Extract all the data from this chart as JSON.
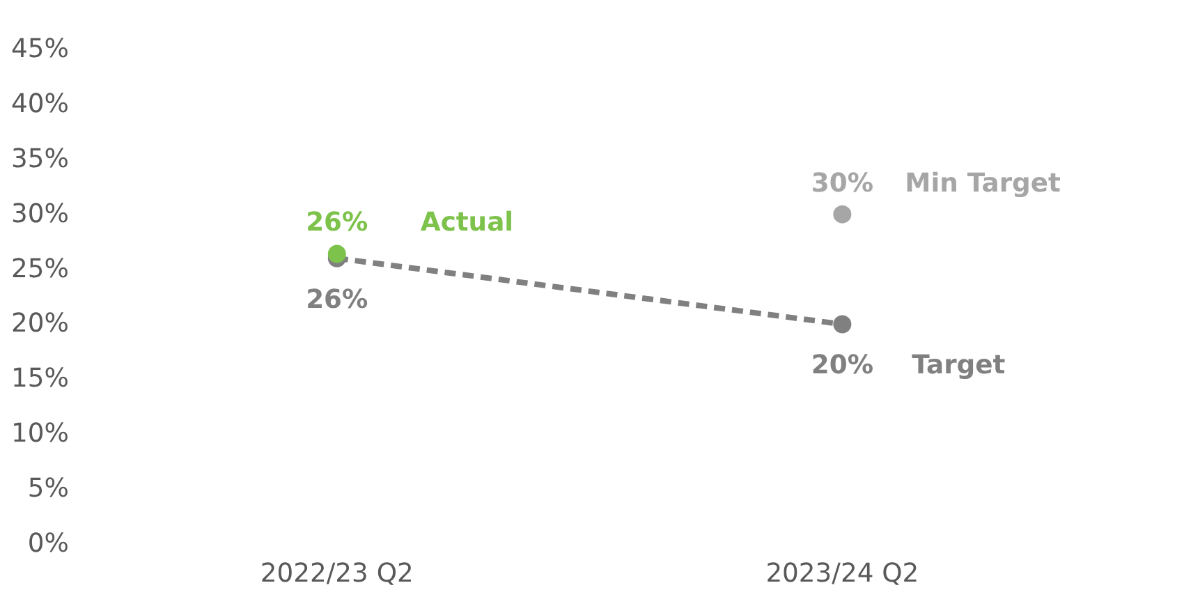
{
  "chart_data": {
    "type": "line",
    "categories": [
      "2022/23 Q2",
      "2023/24 Q2"
    ],
    "series": [
      {
        "name": "Target",
        "line_style": "dashed",
        "color": "#808080",
        "values": [
          26,
          20
        ],
        "value_labels": [
          "26%",
          "20%"
        ]
      },
      {
        "name": "Min Target",
        "type": "scatter",
        "color": "#a6a6a6",
        "values": [
          null,
          30
        ],
        "value_labels": [
          null,
          "30%"
        ]
      },
      {
        "name": "Actual",
        "type": "scatter",
        "color": "#7dc24b",
        "values": [
          26.4,
          null
        ],
        "value_labels": [
          "26%",
          null
        ]
      }
    ],
    "ylim": [
      0,
      45
    ],
    "yticks": [
      {
        "value": 0,
        "label": "0%"
      },
      {
        "value": 5,
        "label": "5%"
      },
      {
        "value": 10,
        "label": "10%"
      },
      {
        "value": 15,
        "label": "15%"
      },
      {
        "value": 20,
        "label": "20%"
      },
      {
        "value": 25,
        "label": "25%"
      },
      {
        "value": 30,
        "label": "30%"
      },
      {
        "value": 35,
        "label": "35%"
      },
      {
        "value": 40,
        "label": "40%"
      },
      {
        "value": 45,
        "label": "45%"
      }
    ],
    "grid": false,
    "marker": "circle"
  }
}
